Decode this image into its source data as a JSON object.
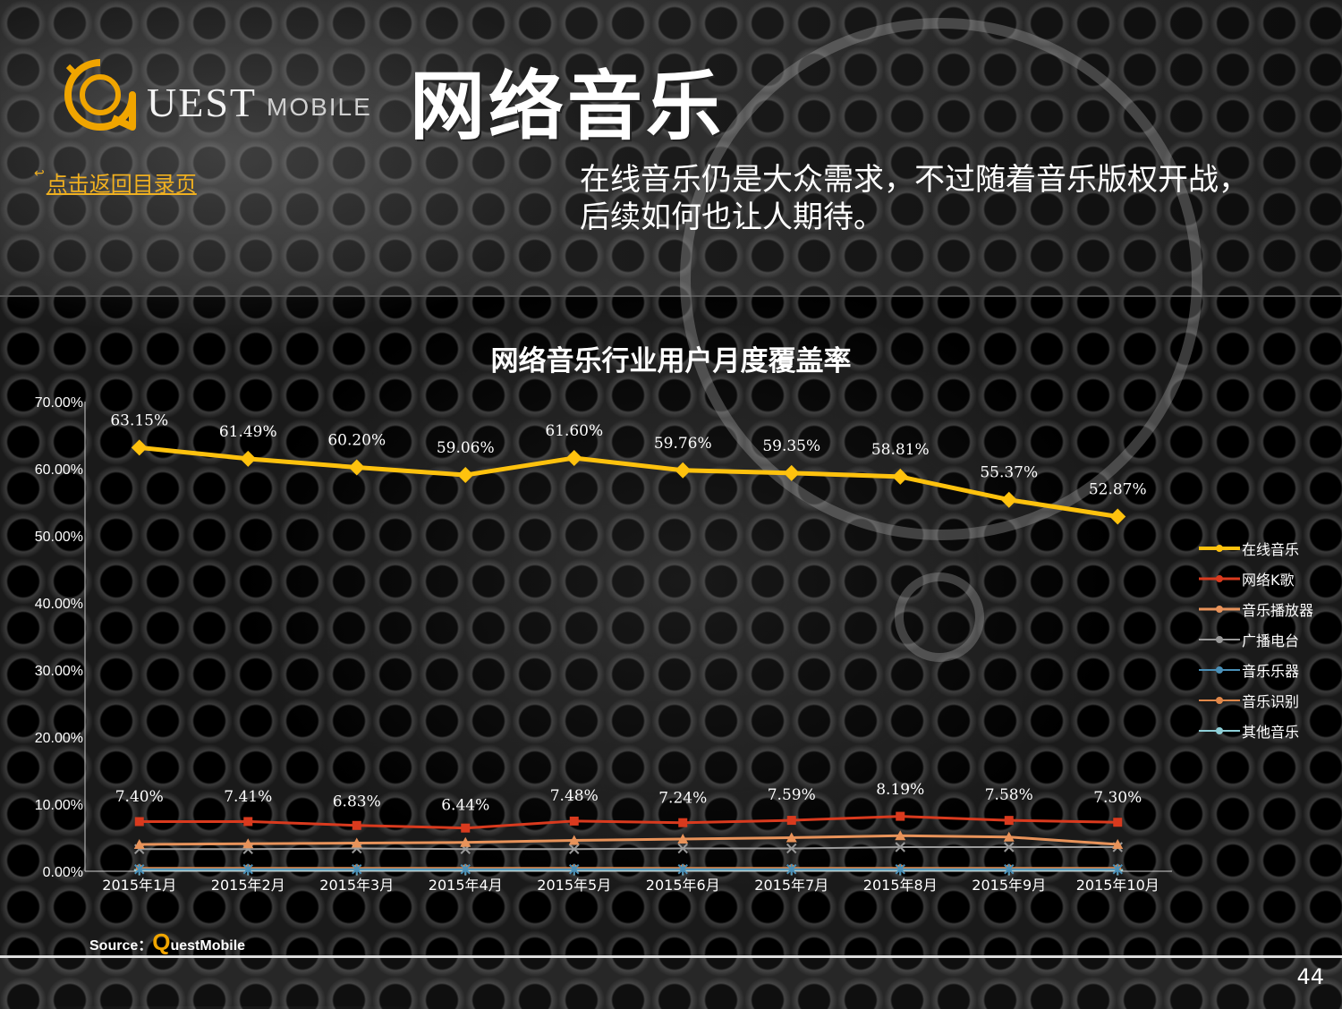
{
  "header": {
    "logo_main": "UEST",
    "logo_sub": "MOBILE",
    "title": "网络音乐",
    "back_link": "点击返回目录页",
    "subtitle_line1": "在线音乐仍是大众需求，不过随着音乐版权开战，",
    "subtitle_line2": "后续如何也让人期待。"
  },
  "colors": {
    "online_music": "#ffc20e",
    "karaoke": "#d93a1e",
    "player": "#e8935a",
    "radio": "#9a9a9a",
    "instrument": "#4a90b8",
    "recognition": "#e0884a",
    "other": "#8fd0d8"
  },
  "chart_data": {
    "type": "line",
    "title": "网络音乐行业用户月度覆盖率",
    "x": [
      "2015年1月",
      "2015年2月",
      "2015年3月",
      "2015年4月",
      "2015年5月",
      "2015年6月",
      "2015年7月",
      "2015年8月",
      "2015年9月",
      "2015年10月"
    ],
    "ylim": [
      0,
      70
    ],
    "yticks": [
      "0.00%",
      "10.00%",
      "20.00%",
      "30.00%",
      "40.00%",
      "50.00%",
      "60.00%",
      "70.00%"
    ],
    "legend_position": "right",
    "series": [
      {
        "name": "在线音乐",
        "color": "#ffc20e",
        "marker": "diamond",
        "width": 5,
        "values": [
          63.15,
          61.49,
          60.2,
          59.06,
          61.6,
          59.76,
          59.35,
          58.81,
          55.37,
          52.87
        ],
        "labels": [
          "63.15%",
          "61.49%",
          "60.20%",
          "59.06%",
          "61.60%",
          "59.76%",
          "59.35%",
          "58.81%",
          "55.37%",
          "52.87%"
        ]
      },
      {
        "name": "网络K歌",
        "color": "#d93a1e",
        "marker": "square",
        "width": 3,
        "values": [
          7.4,
          7.41,
          6.83,
          6.44,
          7.48,
          7.24,
          7.59,
          8.19,
          7.58,
          7.3
        ],
        "labels": [
          "7.40%",
          "7.41%",
          "6.83%",
          "6.44%",
          "7.48%",
          "7.24%",
          "7.59%",
          "8.19%",
          "7.58%",
          "7.30%"
        ]
      },
      {
        "name": "音乐播放器",
        "color": "#e8935a",
        "marker": "triangle",
        "width": 3,
        "values": [
          4.0,
          4.1,
          4.2,
          4.3,
          4.6,
          4.8,
          5.0,
          5.3,
          5.1,
          4.0
        ]
      },
      {
        "name": "广播电台",
        "color": "#9a9a9a",
        "marker": "x",
        "width": 2,
        "values": [
          3.3,
          3.3,
          3.4,
          3.3,
          3.3,
          3.4,
          3.4,
          3.6,
          3.6,
          3.6
        ]
      },
      {
        "name": "音乐乐器",
        "color": "#4a90b8",
        "marker": "star",
        "width": 2,
        "values": [
          0.3,
          0.3,
          0.3,
          0.3,
          0.3,
          0.3,
          0.3,
          0.3,
          0.3,
          0.3
        ]
      },
      {
        "name": "音乐识别",
        "color": "#e0884a",
        "marker": "circle",
        "width": 2,
        "values": [
          0.5,
          0.5,
          0.5,
          0.5,
          0.5,
          0.5,
          0.5,
          0.5,
          0.5,
          0.5
        ]
      },
      {
        "name": "其他音乐",
        "color": "#8fd0d8",
        "marker": "plus",
        "width": 2,
        "values": [
          0.2,
          0.2,
          0.2,
          0.2,
          0.2,
          0.2,
          0.2,
          0.2,
          0.2,
          0.2
        ]
      }
    ]
  },
  "footer": {
    "source_label": "Source：",
    "source_q": "Q",
    "source_brand": "uestMobile",
    "page_number": "44"
  }
}
